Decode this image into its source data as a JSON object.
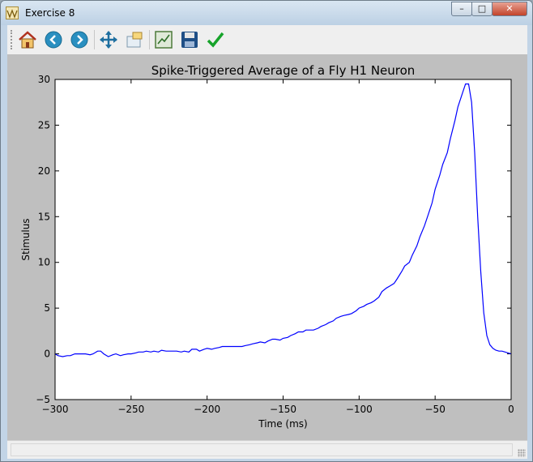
{
  "window": {
    "title": "Exercise 8",
    "minimize_label": "–",
    "maximize_label": "□",
    "close_label": "✕"
  },
  "toolbar": {
    "buttons": [
      {
        "name": "home-button",
        "icon": "home-icon"
      },
      {
        "name": "back-button",
        "icon": "arrow-left-icon"
      },
      {
        "name": "forward-button",
        "icon": "arrow-right-icon"
      },
      {
        "name": "pan-button",
        "icon": "move-arrows-icon"
      },
      {
        "name": "zoom-button",
        "icon": "zoom-rectangle-icon"
      },
      {
        "name": "configure-subplots-button",
        "icon": "subplots-icon"
      },
      {
        "name": "save-button",
        "icon": "floppy-disk-icon"
      },
      {
        "name": "edit-parameters-button",
        "icon": "checkmark-icon"
      }
    ]
  },
  "colors": {
    "line": "#0000ff",
    "figure_background": "#bfbfbf",
    "axes_background": "#ffffff"
  },
  "chart_data": {
    "type": "line",
    "title": "Spike-Triggered Average of a Fly H1 Neuron",
    "xlabel": "Time (ms)",
    "ylabel": "Stimulus",
    "xlim": [
      -300,
      0
    ],
    "ylim": [
      -5,
      30
    ],
    "xticks": [
      -300,
      -250,
      -200,
      -150,
      -100,
      -50,
      0
    ],
    "xtick_labels": [
      "−300",
      "−250",
      "−200",
      "−150",
      "−100",
      "−50",
      "0"
    ],
    "yticks": [
      -5,
      0,
      5,
      10,
      15,
      20,
      25,
      30
    ],
    "ytick_labels": [
      "−5",
      "0",
      "5",
      "10",
      "15",
      "20",
      "25",
      "30"
    ],
    "grid": false,
    "legend": "none",
    "series": [
      {
        "x": [
          -300,
          -298,
          -295,
          -292,
          -290,
          -287,
          -285,
          -282,
          -280,
          -277,
          -275,
          -272,
          -270,
          -268,
          -265,
          -262,
          -260,
          -257,
          -255,
          -252,
          -250,
          -247,
          -245,
          -242,
          -240,
          -237,
          -235,
          -232,
          -230,
          -227,
          -225,
          -222,
          -220,
          -217,
          -215,
          -212,
          -210,
          -207,
          -205,
          -202,
          -200,
          -197,
          -195,
          -192,
          -190,
          -187,
          -185,
          -182,
          -180,
          -177,
          -175,
          -172,
          -170,
          -167,
          -165,
          -162,
          -160,
          -157,
          -155,
          -152,
          -150,
          -147,
          -145,
          -142,
          -140,
          -137,
          -135,
          -132,
          -130,
          -127,
          -125,
          -122,
          -120,
          -117,
          -115,
          -112,
          -110,
          -107,
          -105,
          -102,
          -100,
          -97,
          -95,
          -92,
          -90,
          -87,
          -85,
          -82,
          -80,
          -77,
          -75,
          -72,
          -70,
          -67,
          -65,
          -62,
          -60,
          -57,
          -55,
          -52,
          -50,
          -47,
          -45,
          -42,
          -40,
          -37,
          -35,
          -32,
          -30,
          -28,
          -26,
          -24,
          -22,
          -20,
          -18,
          -16,
          -14,
          -12,
          -10,
          -8,
          -6,
          -4,
          -2,
          0
        ],
        "y": [
          0.0,
          -0.2,
          -0.3,
          -0.2,
          -0.2,
          0.0,
          0.0,
          0.0,
          0.0,
          -0.1,
          0.0,
          0.3,
          0.3,
          0.0,
          -0.3,
          -0.1,
          0.0,
          -0.2,
          -0.1,
          0.0,
          0.0,
          0.1,
          0.2,
          0.2,
          0.3,
          0.2,
          0.3,
          0.2,
          0.4,
          0.3,
          0.3,
          0.3,
          0.3,
          0.2,
          0.3,
          0.2,
          0.5,
          0.5,
          0.3,
          0.5,
          0.6,
          0.5,
          0.6,
          0.7,
          0.8,
          0.8,
          0.8,
          0.8,
          0.8,
          0.8,
          0.9,
          1.0,
          1.1,
          1.2,
          1.3,
          1.2,
          1.4,
          1.6,
          1.6,
          1.5,
          1.7,
          1.8,
          2.0,
          2.2,
          2.4,
          2.4,
          2.6,
          2.6,
          2.6,
          2.8,
          3.0,
          3.2,
          3.4,
          3.6,
          3.9,
          4.1,
          4.2,
          4.3,
          4.4,
          4.7,
          5.0,
          5.2,
          5.4,
          5.6,
          5.8,
          6.2,
          6.8,
          7.2,
          7.4,
          7.7,
          8.2,
          9.0,
          9.6,
          10.0,
          10.8,
          11.8,
          12.8,
          14.0,
          15.0,
          16.5,
          18.0,
          19.5,
          20.7,
          22.0,
          23.5,
          25.5,
          27.0,
          28.5,
          29.5,
          29.5,
          27.5,
          22.0,
          15.0,
          9.0,
          4.5,
          2.0,
          1.0,
          0.6,
          0.4,
          0.3,
          0.3,
          0.2,
          0.1,
          0.0
        ]
      }
    ]
  }
}
